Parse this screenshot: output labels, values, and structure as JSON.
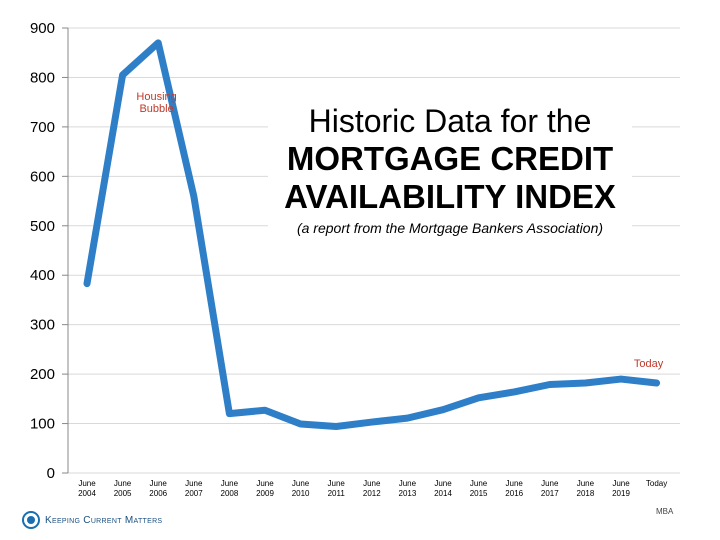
{
  "chart_data": {
    "type": "line",
    "title": "Historic Data for the",
    "title_bold": "MORTGAGE CREDIT AVAILABILITY INDEX",
    "subtitle": "(a report from the Mortgage Bankers Association)",
    "categories": [
      "June 2004",
      "June 2005",
      "June 2006",
      "June 2007",
      "June 2008",
      "June 2009",
      "June 2010",
      "June 2011",
      "June 2012",
      "June 2013",
      "June 2014",
      "June 2015",
      "June 2016",
      "June 2017",
      "June 2018",
      "June 2019",
      "Today"
    ],
    "x_tick_labels": [
      {
        "line1": "June",
        "line2": "2004"
      },
      {
        "line1": "June",
        "line2": "2005"
      },
      {
        "line1": "June",
        "line2": "2006"
      },
      {
        "line1": "June",
        "line2": "2007"
      },
      {
        "line1": "June",
        "line2": "2008"
      },
      {
        "line1": "June",
        "line2": "2009"
      },
      {
        "line1": "June",
        "line2": "2010"
      },
      {
        "line1": "June",
        "line2": "2011"
      },
      {
        "line1": "June",
        "line2": "2012"
      },
      {
        "line1": "June",
        "line2": "2013"
      },
      {
        "line1": "June",
        "line2": "2014"
      },
      {
        "line1": "June",
        "line2": "2015"
      },
      {
        "line1": "June",
        "line2": "2016"
      },
      {
        "line1": "June",
        "line2": "2017"
      },
      {
        "line1": "June",
        "line2": "2018"
      },
      {
        "line1": "June",
        "line2": "2019"
      },
      {
        "line1": "Today",
        "line2": ""
      }
    ],
    "series": [
      {
        "values": [
          383,
          805,
          870,
          560,
          120,
          127,
          99,
          94,
          103,
          111,
          128,
          152,
          164,
          179,
          182,
          190,
          182
        ],
        "color": "#2f7fc8"
      }
    ],
    "ylim": [
      0,
      900
    ],
    "yticks": [
      0,
      100,
      200,
      300,
      400,
      500,
      600,
      700,
      800,
      900
    ],
    "grid": true,
    "annotations": [
      {
        "text_lines": [
          "Housing",
          "Bubble"
        ],
        "at_index": 1,
        "color": "#c0392b"
      },
      {
        "text_lines": [
          "Today"
        ],
        "at_index": 16,
        "color": "#c0392b"
      }
    ]
  },
  "footer": {
    "logo_text": "Keeping Current Matters",
    "source": "MBA"
  }
}
